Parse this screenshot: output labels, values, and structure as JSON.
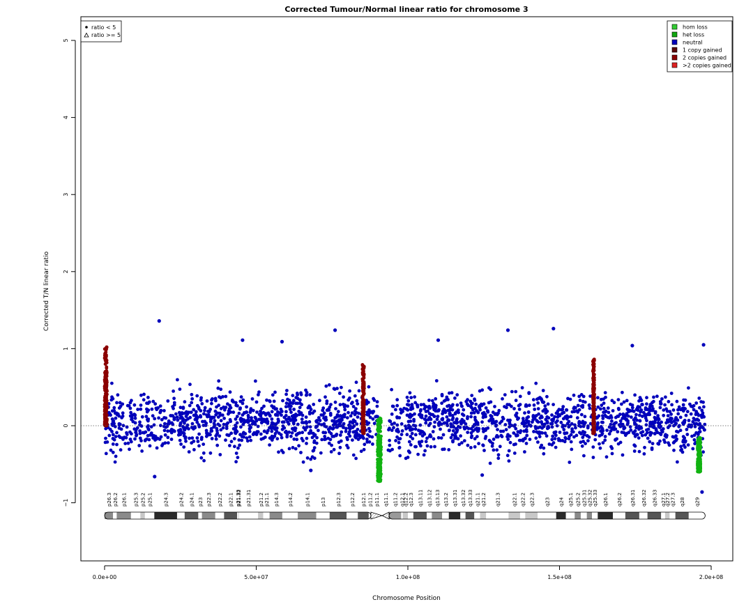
{
  "chart_data": {
    "type": "scatter",
    "title": "Corrected Tumour/Normal linear ratio for chromosome  3",
    "xlabel": "Chromosome Position",
    "ylabel": "Corrected T/N linear ratio",
    "xlim": [
      0,
      200000000
    ],
    "ylim": [
      -1.8,
      5.3
    ],
    "x_ticks": [
      {
        "value": 0,
        "label": "0.0e+00"
      },
      {
        "value": 50000000,
        "label": "5.0e+07"
      },
      {
        "value": 100000000,
        "label": "1.0e+08"
      },
      {
        "value": 150000000,
        "label": "1.5e+08"
      },
      {
        "value": 200000000,
        "label": "2.0e+08"
      }
    ],
    "y_ticks": [
      {
        "value": -1,
        "label": "−1"
      },
      {
        "value": 0,
        "label": "0"
      },
      {
        "value": 1,
        "label": "1"
      },
      {
        "value": 2,
        "label": "2"
      },
      {
        "value": 3,
        "label": "3"
      },
      {
        "value": 4,
        "label": "4"
      },
      {
        "value": 5,
        "label": "5"
      }
    ],
    "reference_line": {
      "y": 0,
      "style": "dotted"
    },
    "grid": false,
    "shape_legend": {
      "position": "top-left",
      "entries": [
        {
          "symbol": "dot",
          "label": "ratio < 5"
        },
        {
          "symbol": "triangle",
          "label": "ratio >= 5"
        }
      ]
    },
    "state_legend": {
      "position": "top-right",
      "entries": [
        {
          "label": "hom loss",
          "color": "#33cc33"
        },
        {
          "label": "het loss",
          "color": "#11a811"
        },
        {
          "label": "neutral",
          "color": "#0000bb"
        },
        {
          "label": "1 copy gained",
          "color": "#5a0a0a"
        },
        {
          "label": "2 copies gained",
          "color": "#8b0000"
        },
        {
          "label": ">2 copies gained",
          "color": "#dd2222"
        }
      ]
    },
    "colors": {
      "neutral": "#0000bb",
      "loss": "#11b311",
      "gain": "#8b0000"
    },
    "series": [
      {
        "state": "neutral",
        "x_start": 150000,
        "x_end": 90000000,
        "center": 0.05,
        "spread": [
          -0.55,
          0.65
        ]
      },
      {
        "state": "neutral",
        "x_start": 93500000,
        "x_end": 198000000,
        "center": 0.05,
        "spread": [
          -0.55,
          0.65
        ]
      },
      {
        "state": "gain",
        "x_start": 0,
        "x_end": 800000,
        "center": 0.4,
        "spread": [
          0.0,
          1.02
        ]
      },
      {
        "state": "gain",
        "x_start": 85000000,
        "x_end": 85600000,
        "center": 0.3,
        "spread": [
          -0.1,
          0.8
        ]
      },
      {
        "state": "gain",
        "x_start": 161000000,
        "x_end": 161500000,
        "center": 0.3,
        "spread": [
          -0.1,
          0.87
        ]
      },
      {
        "state": "loss",
        "x_start": 90000000,
        "x_end": 91200000,
        "center": -0.3,
        "spread": [
          -0.72,
          0.1
        ]
      },
      {
        "state": "loss",
        "x_start": 195500000,
        "x_end": 196500000,
        "center": -0.35,
        "spread": [
          -0.6,
          -0.15
        ]
      }
    ],
    "outliers": [
      {
        "x": 700000,
        "y": 1.02,
        "state": "gain"
      },
      {
        "x": 18000000,
        "y": 1.36,
        "state": "neutral"
      },
      {
        "x": 45500000,
        "y": 1.11,
        "state": "neutral"
      },
      {
        "x": 58500000,
        "y": 1.09,
        "state": "neutral"
      },
      {
        "x": 76000000,
        "y": 1.24,
        "state": "neutral"
      },
      {
        "x": 110000000,
        "y": 1.11,
        "state": "neutral"
      },
      {
        "x": 133000000,
        "y": 1.24,
        "state": "neutral"
      },
      {
        "x": 148000000,
        "y": 1.26,
        "state": "neutral"
      },
      {
        "x": 174000000,
        "y": 1.04,
        "state": "neutral"
      },
      {
        "x": 197500000,
        "y": 1.05,
        "state": "neutral"
      },
      {
        "x": 68000000,
        "y": -0.58,
        "state": "neutral"
      },
      {
        "x": 16500000,
        "y": -0.66,
        "state": "neutral"
      },
      {
        "x": 124500000,
        "y": -0.64,
        "state": "neutral"
      },
      {
        "x": 90500000,
        "y": -0.72,
        "state": "loss"
      },
      {
        "x": 197000000,
        "y": -0.86,
        "state": "neutral"
      }
    ],
    "ideogram": {
      "centromere": {
        "start": 87800000,
        "mid": 91500000,
        "end": 93800000
      },
      "bands": [
        {
          "name": "p26.3",
          "start": 0,
          "end": 2800000,
          "stain": "gpos50"
        },
        {
          "name": "p26.2",
          "start": 2800000,
          "end": 4000000,
          "stain": "gneg"
        },
        {
          "name": "p26.1",
          "start": 4000000,
          "end": 8700000,
          "stain": "gpos50"
        },
        {
          "name": "p25.3",
          "start": 8700000,
          "end": 11800000,
          "stain": "gneg"
        },
        {
          "name": "p25.2",
          "start": 11800000,
          "end": 13300000,
          "stain": "gpos25"
        },
        {
          "name": "p25.1",
          "start": 13300000,
          "end": 16400000,
          "stain": "gneg"
        },
        {
          "name": "p24.3",
          "start": 16400000,
          "end": 23900000,
          "stain": "gpos100"
        },
        {
          "name": "p24.2",
          "start": 23900000,
          "end": 26400000,
          "stain": "gneg"
        },
        {
          "name": "p24.1",
          "start": 26400000,
          "end": 30900000,
          "stain": "gpos75"
        },
        {
          "name": "p23",
          "start": 30900000,
          "end": 32100000,
          "stain": "gneg"
        },
        {
          "name": "p22.3",
          "start": 32100000,
          "end": 36500000,
          "stain": "gpos50"
        },
        {
          "name": "p22.2",
          "start": 36500000,
          "end": 39400000,
          "stain": "gneg"
        },
        {
          "name": "p22.1",
          "start": 39400000,
          "end": 43700000,
          "stain": "gpos75"
        },
        {
          "name": "p21.33",
          "start": 43700000,
          "end": 44100000,
          "stain": "gneg"
        },
        {
          "name": "p21.32",
          "start": 44100000,
          "end": 44200000,
          "stain": "gpos50"
        },
        {
          "name": "p21.31",
          "start": 44200000,
          "end": 50600000,
          "stain": "gneg"
        },
        {
          "name": "p21.2",
          "start": 50600000,
          "end": 52300000,
          "stain": "gpos25"
        },
        {
          "name": "p21.1",
          "start": 52300000,
          "end": 54400000,
          "stain": "gneg"
        },
        {
          "name": "p14.3",
          "start": 54400000,
          "end": 58600000,
          "stain": "gpos50"
        },
        {
          "name": "p14.2",
          "start": 58600000,
          "end": 63700000,
          "stain": "gneg"
        },
        {
          "name": "p14.1",
          "start": 63700000,
          "end": 69800000,
          "stain": "gpos50"
        },
        {
          "name": "p13",
          "start": 69800000,
          "end": 74200000,
          "stain": "gneg"
        },
        {
          "name": "p12.3",
          "start": 74200000,
          "end": 79800000,
          "stain": "gpos75"
        },
        {
          "name": "p12.2",
          "start": 79800000,
          "end": 83500000,
          "stain": "gneg"
        },
        {
          "name": "p12.1",
          "start": 83500000,
          "end": 87100000,
          "stain": "gpos75"
        },
        {
          "name": "p11.2",
          "start": 87100000,
          "end": 87800000,
          "stain": "gneg"
        },
        {
          "name": "p11.1",
          "start": 87800000,
          "end": 91500000,
          "stain": "acen"
        },
        {
          "name": "q11.1",
          "start": 91500000,
          "end": 93800000,
          "stain": "acen"
        },
        {
          "name": "q11.2",
          "start": 93800000,
          "end": 97800000,
          "stain": "gvar"
        },
        {
          "name": "q12.1",
          "start": 97800000,
          "end": 98300000,
          "stain": "gneg"
        },
        {
          "name": "q12.2",
          "start": 98300000,
          "end": 100000000,
          "stain": "gpos25"
        },
        {
          "name": "q12.3",
          "start": 100000000,
          "end": 101800000,
          "stain": "gneg"
        },
        {
          "name": "q13.11",
          "start": 101800000,
          "end": 106200000,
          "stain": "gpos75"
        },
        {
          "name": "q13.12",
          "start": 106200000,
          "end": 107900000,
          "stain": "gneg"
        },
        {
          "name": "q13.13",
          "start": 107900000,
          "end": 111300000,
          "stain": "gpos50"
        },
        {
          "name": "q13.2",
          "start": 111300000,
          "end": 113500000,
          "stain": "gneg"
        },
        {
          "name": "q13.31",
          "start": 113500000,
          "end": 117300000,
          "stain": "gpos100"
        },
        {
          "name": "q13.32",
          "start": 117300000,
          "end": 119000000,
          "stain": "gneg"
        },
        {
          "name": "q13.33",
          "start": 119000000,
          "end": 121900000,
          "stain": "gpos75"
        },
        {
          "name": "q21.1",
          "start": 121900000,
          "end": 123800000,
          "stain": "gneg"
        },
        {
          "name": "q21.2",
          "start": 123800000,
          "end": 125800000,
          "stain": "gpos25"
        },
        {
          "name": "q21.3",
          "start": 125800000,
          "end": 133200000,
          "stain": "gneg"
        },
        {
          "name": "q22.1",
          "start": 133200000,
          "end": 137000000,
          "stain": "gpos25"
        },
        {
          "name": "q22.2",
          "start": 137000000,
          "end": 138700000,
          "stain": "gneg"
        },
        {
          "name": "q22.3",
          "start": 138700000,
          "end": 142800000,
          "stain": "gpos25"
        },
        {
          "name": "q23",
          "start": 142800000,
          "end": 148900000,
          "stain": "gneg"
        },
        {
          "name": "q24",
          "start": 148900000,
          "end": 152100000,
          "stain": "gpos100"
        },
        {
          "name": "q25.1",
          "start": 152100000,
          "end": 155000000,
          "stain": "gneg"
        },
        {
          "name": "q25.2",
          "start": 155000000,
          "end": 157000000,
          "stain": "gpos50"
        },
        {
          "name": "q25.31",
          "start": 157000000,
          "end": 159000000,
          "stain": "gneg"
        },
        {
          "name": "q25.32",
          "start": 159000000,
          "end": 160700000,
          "stain": "gpos50"
        },
        {
          "name": "q25.33",
          "start": 160700000,
          "end": 162600000,
          "stain": "gneg"
        },
        {
          "name": "q26.1",
          "start": 162600000,
          "end": 167600000,
          "stain": "gpos100"
        },
        {
          "name": "q26.2",
          "start": 167600000,
          "end": 171700000,
          "stain": "gneg"
        },
        {
          "name": "q26.31",
          "start": 171700000,
          "end": 176300000,
          "stain": "gpos75"
        },
        {
          "name": "q26.32",
          "start": 176300000,
          "end": 179000000,
          "stain": "gneg"
        },
        {
          "name": "q26.33",
          "start": 179000000,
          "end": 183500000,
          "stain": "gpos75"
        },
        {
          "name": "q27.1",
          "start": 183500000,
          "end": 184800000,
          "stain": "gneg"
        },
        {
          "name": "q27.2",
          "start": 184800000,
          "end": 186300000,
          "stain": "gpos25"
        },
        {
          "name": "q27.3",
          "start": 186300000,
          "end": 188200000,
          "stain": "gneg"
        },
        {
          "name": "q28",
          "start": 188200000,
          "end": 192600000,
          "stain": "gpos75"
        },
        {
          "name": "q29",
          "start": 192600000,
          "end": 198022430,
          "stain": "gneg"
        }
      ]
    }
  }
}
